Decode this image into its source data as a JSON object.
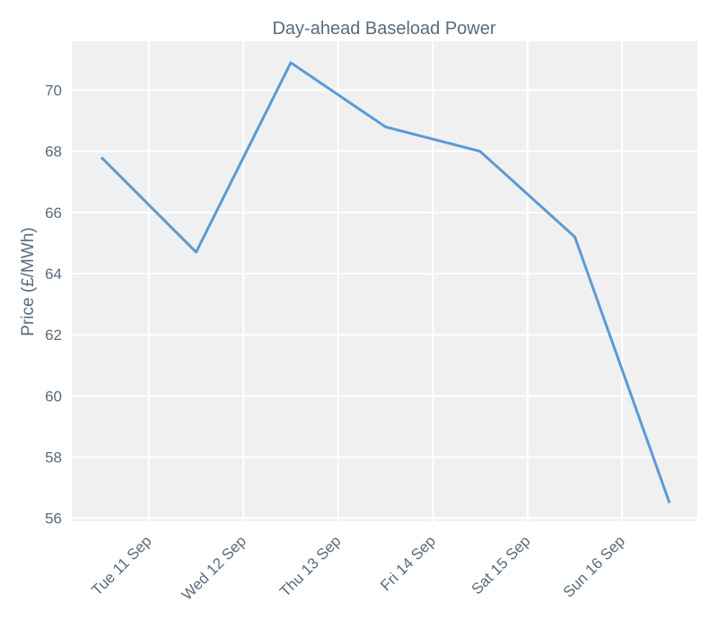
{
  "chart_data": {
    "type": "line",
    "title": "Day-ahead Baseload Power",
    "xlabel": "",
    "ylabel": "Price (£/MWh)",
    "x": [
      "2018-09-10 12:00",
      "2018-09-11 12:00",
      "2018-09-12 12:00",
      "2018-09-13 12:00",
      "2018-09-14 12:00",
      "2018-09-15 12:00",
      "2018-09-16 12:00"
    ],
    "x_ticks": [
      "Tue 11 Sep",
      "Wed 12 Sep",
      "Thu 13 Sep",
      "Fri 14 Sep",
      "Sat 15 Sep",
      "Sun 16 Sep"
    ],
    "y_ticks": [
      56,
      58,
      60,
      62,
      64,
      66,
      68,
      70
    ],
    "ylim": [
      55.9,
      71.6
    ],
    "series": [
      {
        "values": [
          67.8,
          64.7,
          70.9,
          68.8,
          68.0,
          65.2,
          56.5
        ],
        "color": "#5b9bd5"
      }
    ],
    "grid": true,
    "background": "#f0f0f0",
    "grid_color": "#ffffff"
  }
}
